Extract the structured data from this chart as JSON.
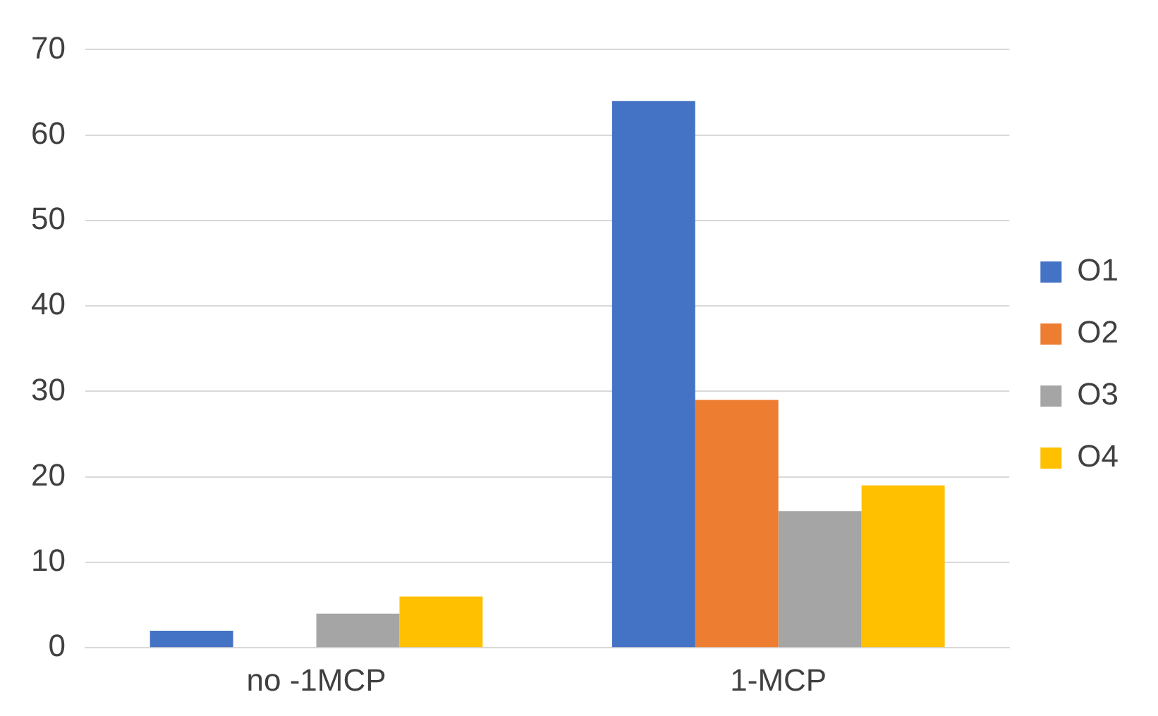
{
  "chart_data": {
    "type": "bar",
    "categories": [
      "no -1MCP",
      "1-MCP"
    ],
    "series": [
      {
        "name": "O1",
        "color": "#4472c4",
        "values": [
          2,
          64
        ]
      },
      {
        "name": "O2",
        "color": "#ed7d31",
        "values": [
          0,
          29
        ]
      },
      {
        "name": "O3",
        "color": "#a5a5a5",
        "values": [
          4,
          16
        ]
      },
      {
        "name": "O4",
        "color": "#ffc000",
        "values": [
          6,
          19
        ]
      }
    ],
    "ylim": [
      0,
      70
    ],
    "yticks": [
      0,
      10,
      20,
      30,
      40,
      50,
      60,
      70
    ],
    "grid": "y",
    "legend": "right"
  }
}
